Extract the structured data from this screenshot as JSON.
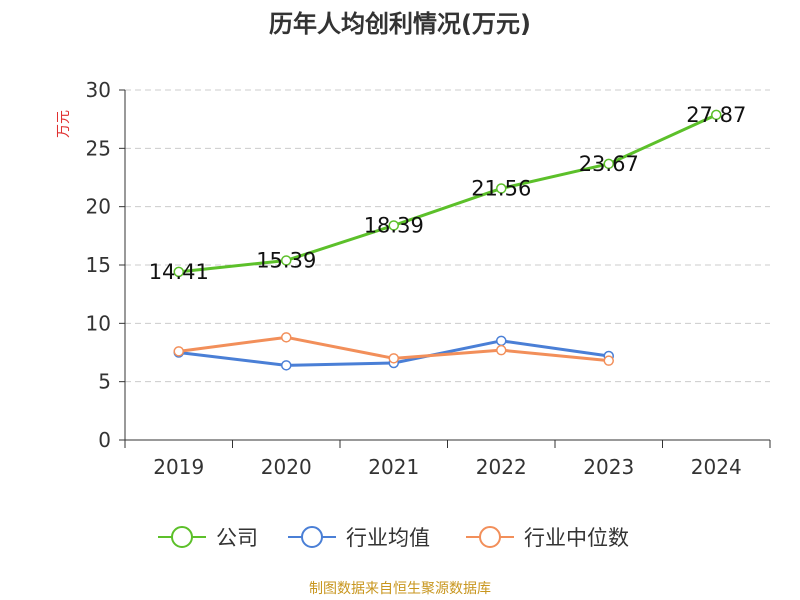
{
  "chart_data": {
    "type": "line",
    "title": "历年人均创利情况(万元)",
    "ylabel": "万元",
    "xlabel": "",
    "categories": [
      "2019",
      "2020",
      "2021",
      "2022",
      "2023",
      "2024"
    ],
    "ylim": [
      0,
      30
    ],
    "yticks": [
      "0",
      "5",
      "10",
      "15",
      "20",
      "25",
      "30"
    ],
    "grid": true,
    "legend_position": "bottom",
    "series": [
      {
        "name": "公司",
        "color": "#5cc02a",
        "values": [
          14.41,
          15.39,
          18.39,
          21.56,
          23.67,
          27.87
        ],
        "labels": [
          "14.41",
          "15.39",
          "18.39",
          "21.56",
          "23.67",
          "27.87"
        ]
      },
      {
        "name": "行业均值",
        "color": "#4a7fd6",
        "values": [
          7.5,
          6.4,
          6.6,
          8.5,
          7.2,
          null
        ]
      },
      {
        "name": "行业中位数",
        "color": "#f28f5a",
        "values": [
          7.6,
          8.8,
          7.0,
          7.7,
          6.8,
          null
        ]
      }
    ]
  },
  "source": "制图数据来自恒生聚源数据库",
  "colors": {
    "ylabel": "#e03030",
    "axis": "#333333",
    "grid": "#cccccc"
  }
}
